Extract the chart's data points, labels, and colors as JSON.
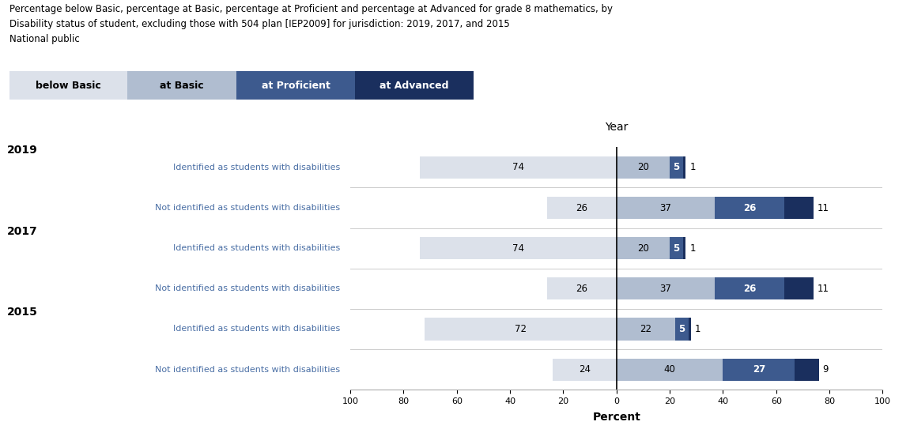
{
  "title_lines": [
    "Percentage below Basic, percentage at Basic, percentage at Proficient and percentage at Advanced for grade 8 mathematics, by",
    "Disability status of student, excluding those with 504 plan [IEP2009] for jurisdiction: 2019, 2017, and 2015",
    "National public"
  ],
  "legend_labels": [
    "below Basic",
    "at Basic",
    "at Proficient",
    "at Advanced"
  ],
  "legend_colors": [
    "#dce1ea",
    "#b0bdd0",
    "#3d5a8e",
    "#1a2f5e"
  ],
  "legend_text_colors": [
    "#000000",
    "#000000",
    "#ffffff",
    "#ffffff"
  ],
  "xlabel": "Percent",
  "ylabel": "Year",
  "rows": [
    {
      "year": "2019",
      "label": "Identified as students with disabilities",
      "below_basic": 74,
      "at_basic": 20,
      "at_proficient": 5,
      "at_advanced": 1
    },
    {
      "year": "",
      "label": "Not identified as students with disabilities",
      "below_basic": 26,
      "at_basic": 37,
      "at_proficient": 26,
      "at_advanced": 11
    },
    {
      "year": "2017",
      "label": "Identified as students with disabilities",
      "below_basic": 74,
      "at_basic": 20,
      "at_proficient": 5,
      "at_advanced": 1
    },
    {
      "year": "",
      "label": "Not identified as students with disabilities",
      "below_basic": 26,
      "at_basic": 37,
      "at_proficient": 26,
      "at_advanced": 11
    },
    {
      "year": "2015",
      "label": "Identified as students with disabilities",
      "below_basic": 72,
      "at_basic": 22,
      "at_proficient": 5,
      "at_advanced": 1
    },
    {
      "year": "",
      "label": "Not identified as students with disabilities",
      "below_basic": 24,
      "at_basic": 40,
      "at_proficient": 27,
      "at_advanced": 9
    }
  ],
  "year_row_indices": {
    "2019": 0,
    "2017": 2,
    "2015": 4
  },
  "color_below_basic": "#dce1ea",
  "color_at_basic": "#b0bdd0",
  "color_at_proficient": "#3d5a8e",
  "color_at_advanced": "#1a2f5e",
  "bar_height": 0.55,
  "axis_limit": 100,
  "background_color": "#ffffff",
  "title_color": "#000000",
  "label_color": "#4a6fa5",
  "year_color": "#000000",
  "value_color_light": "#000000",
  "value_color_dark": "#ffffff",
  "grid_color": "#cccccc",
  "spine_color": "#aaaaaa"
}
